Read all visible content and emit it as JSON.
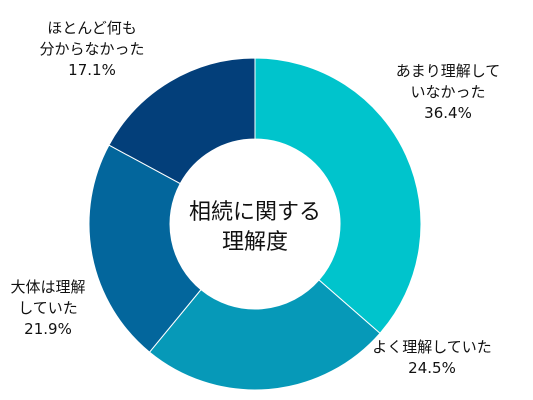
{
  "chart_data": {
    "type": "pie",
    "style": "donut",
    "center_title": [
      "相続に関する",
      "理解度"
    ],
    "start_angle_deg": 0,
    "direction": "clockwise",
    "slices": [
      {
        "label_lines": [
          "あまり理解して",
          "いなかった"
        ],
        "percent_label": "36.4%",
        "value": 36.4,
        "color": "#00c4cc"
      },
      {
        "label_lines": [
          "よく理解していた"
        ],
        "percent_label": "24.5%",
        "value": 24.5,
        "color": "#0699b8"
      },
      {
        "label_lines": [
          "大体は理解",
          "していた"
        ],
        "percent_label": "21.9%",
        "value": 21.9,
        "color": "#03669c"
      },
      {
        "label_lines": [
          "ほとんど何も",
          "分からなかった"
        ],
        "percent_label": "17.1%",
        "value": 17.1,
        "color": "#033f7a"
      }
    ]
  }
}
